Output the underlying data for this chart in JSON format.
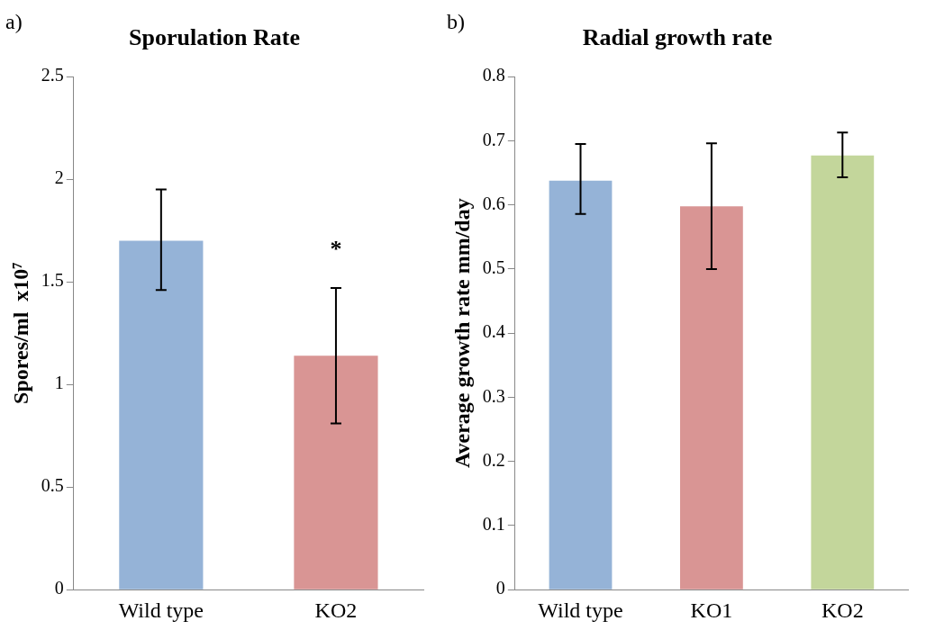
{
  "chart_data": [
    {
      "type": "bar",
      "title": "Sporulation Rate",
      "ylabel": "Spores/ml  x10⁷",
      "categories": [
        "Wild type",
        "KO2"
      ],
      "values": [
        1.7,
        1.14
      ],
      "colors": [
        "#95b3d7",
        "#d99594"
      ],
      "errors": [
        [
          1.46,
          1.95
        ],
        [
          0.81,
          1.47
        ]
      ],
      "ylim": [
        0,
        2.5
      ],
      "yticks": [
        0,
        0.5,
        1,
        1.5,
        2,
        2.5
      ],
      "grid": false,
      "legend": false,
      "annotations": [
        "a)",
        {
          "text": "*",
          "x": "KO2",
          "y": 1.47
        }
      ]
    },
    {
      "type": "bar",
      "title": "Radial growth rate",
      "ylabel": "Average growth rate mm/day",
      "categories": [
        "Wild type",
        "KO1",
        "KO2"
      ],
      "values": [
        0.638,
        0.598,
        0.677
      ],
      "colors": [
        "#95b3d7",
        "#d99594",
        "#c3d69b"
      ],
      "errors": [
        [
          0.586,
          0.695
        ],
        [
          0.5,
          0.696
        ],
        [
          0.643,
          0.713
        ]
      ],
      "ylim": [
        0,
        0.8
      ],
      "yticks": [
        0,
        0.1,
        0.2,
        0.3,
        0.4,
        0.5,
        0.6,
        0.7,
        0.8
      ],
      "grid": false,
      "legend": false,
      "annotations": [
        "b)"
      ]
    }
  ]
}
